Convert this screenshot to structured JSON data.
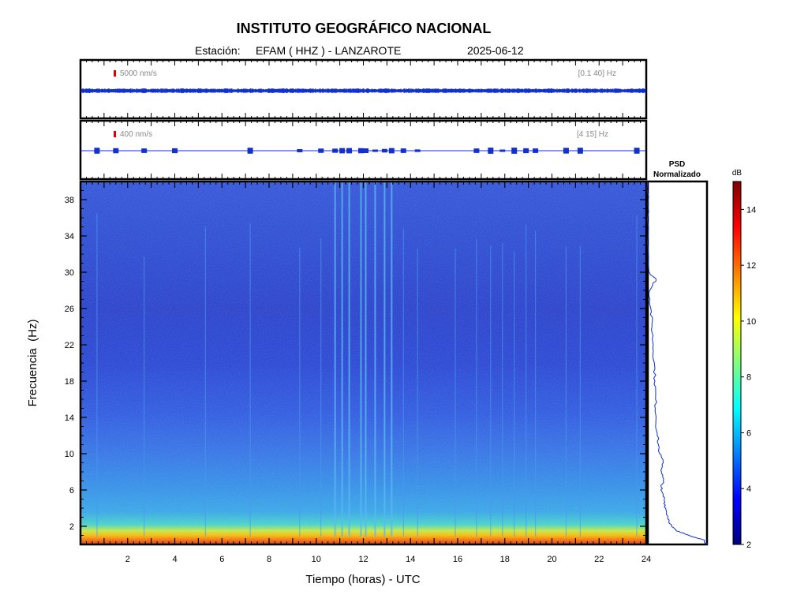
{
  "title": "INSTITUTO GEOGRÁFICO NACIONAL",
  "station": {
    "label": "Estación:",
    "name": "EFAM ( HHZ ) - LANZAROTE",
    "date": "2025-06-12"
  },
  "chart_data": [
    {
      "type": "line",
      "panel": "trace-1",
      "scale_label": "5000 nm/s",
      "filter_label": "[0.1 40] Hz",
      "x": [
        0,
        24
      ],
      "xlim": [
        0,
        24
      ],
      "note_color": "#0000cc"
    },
    {
      "type": "line",
      "panel": "trace-2",
      "scale_label": "400 nm/s",
      "filter_label": "[4 15] Hz",
      "xlim": [
        0,
        24
      ],
      "event_hours": [
        0.7,
        1.5,
        2.7,
        4.0,
        7.2,
        9.3,
        10.2,
        10.8,
        11.1,
        11.4,
        11.9,
        12.1,
        12.5,
        12.9,
        13.2,
        13.7,
        14.3,
        16.8,
        17.4,
        17.9,
        18.4,
        18.9,
        19.3,
        20.6,
        21.2,
        23.6
      ]
    },
    {
      "type": "heatmap",
      "panel": "spectrogram",
      "xlabel": "Tiempo (horas) - UTC",
      "ylabel": "Frecuencia  (Hz)",
      "xlim": [
        0,
        24
      ],
      "ylim": [
        0,
        40
      ],
      "xticks": [
        2,
        4,
        6,
        8,
        10,
        12,
        14,
        16,
        18,
        20,
        22,
        24
      ],
      "yticks": [
        2,
        6,
        10,
        14,
        18,
        22,
        26,
        30,
        34,
        38
      ],
      "vertical_events_hours": [
        0.7,
        2.7,
        5.3,
        7.2,
        9.3,
        10.2,
        10.8,
        11.1,
        11.4,
        11.9,
        12.1,
        12.5,
        12.9,
        13.2,
        13.7,
        14.3,
        15.9,
        16.8,
        17.4,
        17.9,
        18.4,
        18.9,
        19.3,
        20.6,
        21.2,
        23.6
      ]
    },
    {
      "type": "line",
      "panel": "psd",
      "title_lines": [
        "PSD",
        "Normalizado"
      ],
      "frequency_hz": [
        40,
        35,
        30,
        29.2,
        28,
        26,
        24,
        22,
        20,
        18,
        16,
        14,
        12,
        10,
        9,
        8,
        7,
        6,
        5,
        4,
        3,
        2,
        1.5,
        1,
        0.5,
        0
      ],
      "normalized_value": [
        0.0,
        0.01,
        0.02,
        0.14,
        0.03,
        0.05,
        0.07,
        0.09,
        0.11,
        0.12,
        0.13,
        0.14,
        0.16,
        0.2,
        0.26,
        0.23,
        0.26,
        0.22,
        0.28,
        0.3,
        0.34,
        0.4,
        0.48,
        0.7,
        0.95,
        1.0
      ]
    },
    {
      "type": "heatmap",
      "panel": "colorbar",
      "unit_label": "dB",
      "range": [
        2,
        15
      ],
      "ticks": [
        2,
        4,
        6,
        8,
        10,
        12,
        14
      ]
    }
  ]
}
